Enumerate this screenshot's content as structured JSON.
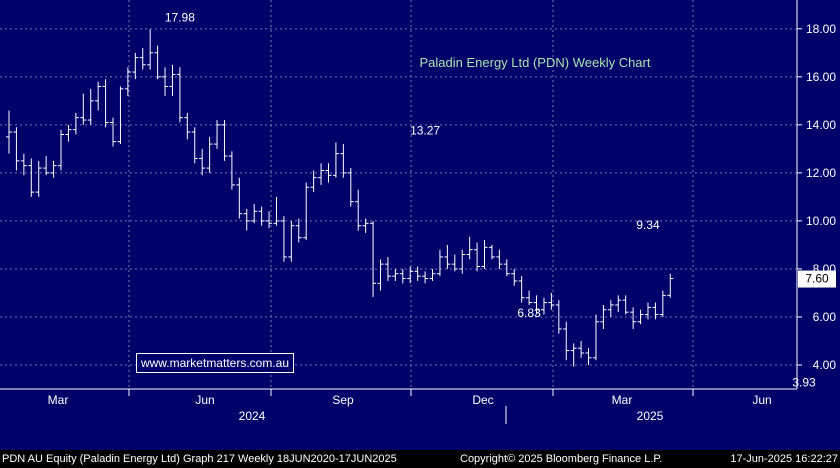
{
  "colors": {
    "plot_bg": "#00006b",
    "grid": "#7a7ab0",
    "bars": "#ffffff",
    "title": "#a8e6a8",
    "label": "#ffffff",
    "last_badge_bg": "#ffffff",
    "last_badge_text": "#000000"
  },
  "watermark": "www.marketmatters.com.au",
  "footer": {
    "left": "PDN AU Equity (Paladin Energy Ltd)  Graph 217  Weekly 18JUN2020-17JUN2025",
    "center": "Copyright© 2025 Bloomberg Finance L.P.",
    "right": "17-Jun-2025 16:22:27"
  },
  "chart_data": {
    "type": "ohlc",
    "title": "Paladin Energy Ltd (PDN) Weekly Chart",
    "interval": "weekly",
    "y_axis": {
      "position": "right",
      "range": [
        3.0,
        19.2
      ],
      "ticks": [
        "4.00",
        "6.00",
        "8.00",
        "10.00",
        "12.00",
        "14.00",
        "16.00",
        "18.00"
      ],
      "grid": true
    },
    "x_axis": {
      "month_labels": [
        "Mar",
        "Jun",
        "Sep",
        "Dec",
        "Mar",
        "Jun"
      ],
      "year_labels": [
        "2024",
        "2025"
      ]
    },
    "last_price": "7.60",
    "annotations": [
      {
        "label": "17.98",
        "week": 23,
        "value": 17.98,
        "position": "above"
      },
      {
        "label": "13.27",
        "week": 56,
        "value": 13.27,
        "position": "above"
      },
      {
        "label": "6.83",
        "week": 70,
        "value": 6.83,
        "position": "below"
      },
      {
        "label": "9.34",
        "week": 86,
        "value": 9.34,
        "position": "above"
      },
      {
        "label": "3.93",
        "week": 107,
        "value": 3.93,
        "position": "below"
      }
    ],
    "bars": [
      {
        "o": 13.5,
        "h": 14.6,
        "l": 12.8,
        "c": 13.7
      },
      {
        "o": 13.7,
        "h": 13.9,
        "l": 12.1,
        "c": 12.5
      },
      {
        "o": 12.5,
        "h": 12.8,
        "l": 11.9,
        "c": 12.3
      },
      {
        "o": 12.3,
        "h": 12.6,
        "l": 11.0,
        "c": 11.2
      },
      {
        "o": 11.2,
        "h": 12.5,
        "l": 11.0,
        "c": 12.2
      },
      {
        "o": 12.2,
        "h": 12.7,
        "l": 11.9,
        "c": 12.0
      },
      {
        "o": 12.0,
        "h": 12.5,
        "l": 11.8,
        "c": 12.3
      },
      {
        "o": 12.3,
        "h": 13.8,
        "l": 12.1,
        "c": 13.6
      },
      {
        "o": 13.6,
        "h": 14.0,
        "l": 13.3,
        "c": 13.8
      },
      {
        "o": 13.8,
        "h": 14.5,
        "l": 13.6,
        "c": 14.3
      },
      {
        "o": 14.3,
        "h": 15.3,
        "l": 14.0,
        "c": 14.2
      },
      {
        "o": 14.2,
        "h": 15.5,
        "l": 14.0,
        "c": 15.0
      },
      {
        "o": 15.0,
        "h": 15.8,
        "l": 14.6,
        "c": 15.6
      },
      {
        "o": 15.6,
        "h": 15.9,
        "l": 13.9,
        "c": 14.1
      },
      {
        "o": 14.1,
        "h": 14.3,
        "l": 13.1,
        "c": 13.3
      },
      {
        "o": 13.3,
        "h": 15.6,
        "l": 13.2,
        "c": 15.5
      },
      {
        "o": 15.5,
        "h": 16.4,
        "l": 15.2,
        "c": 16.2
      },
      {
        "o": 16.2,
        "h": 17.0,
        "l": 15.9,
        "c": 16.8
      },
      {
        "o": 16.8,
        "h": 17.2,
        "l": 16.3,
        "c": 16.5
      },
      {
        "o": 16.5,
        "h": 17.98,
        "l": 16.3,
        "c": 17.0
      },
      {
        "o": 17.0,
        "h": 17.3,
        "l": 15.9,
        "c": 16.0
      },
      {
        "o": 16.0,
        "h": 16.4,
        "l": 15.2,
        "c": 15.6
      },
      {
        "o": 15.6,
        "h": 16.5,
        "l": 15.2,
        "c": 16.1
      },
      {
        "o": 16.1,
        "h": 16.4,
        "l": 14.1,
        "c": 14.3
      },
      {
        "o": 14.3,
        "h": 14.5,
        "l": 13.4,
        "c": 13.7
      },
      {
        "o": 13.7,
        "h": 13.9,
        "l": 12.4,
        "c": 12.6
      },
      {
        "o": 12.6,
        "h": 13.0,
        "l": 11.9,
        "c": 12.2
      },
      {
        "o": 12.2,
        "h": 13.5,
        "l": 12.0,
        "c": 13.2
      },
      {
        "o": 13.2,
        "h": 14.2,
        "l": 13.0,
        "c": 14.0
      },
      {
        "o": 14.0,
        "h": 14.2,
        "l": 12.5,
        "c": 12.7
      },
      {
        "o": 12.7,
        "h": 12.9,
        "l": 11.3,
        "c": 11.5
      },
      {
        "o": 11.5,
        "h": 11.8,
        "l": 10.1,
        "c": 10.3
      },
      {
        "o": 10.3,
        "h": 10.5,
        "l": 9.6,
        "c": 10.0
      },
      {
        "o": 10.0,
        "h": 10.7,
        "l": 9.9,
        "c": 10.4
      },
      {
        "o": 10.4,
        "h": 10.6,
        "l": 9.8,
        "c": 10.0
      },
      {
        "o": 10.0,
        "h": 10.4,
        "l": 9.7,
        "c": 9.9
      },
      {
        "o": 9.9,
        "h": 11.0,
        "l": 9.8,
        "c": 10.0
      },
      {
        "o": 10.0,
        "h": 10.2,
        "l": 8.3,
        "c": 8.5
      },
      {
        "o": 8.5,
        "h": 10.0,
        "l": 8.3,
        "c": 9.8
      },
      {
        "o": 9.8,
        "h": 10.1,
        "l": 9.1,
        "c": 9.3
      },
      {
        "o": 9.3,
        "h": 11.6,
        "l": 9.2,
        "c": 11.4
      },
      {
        "o": 11.4,
        "h": 12.1,
        "l": 11.2,
        "c": 11.8
      },
      {
        "o": 11.8,
        "h": 12.4,
        "l": 11.5,
        "c": 12.1
      },
      {
        "o": 12.1,
        "h": 12.4,
        "l": 11.6,
        "c": 11.9
      },
      {
        "o": 11.9,
        "h": 13.27,
        "l": 11.8,
        "c": 12.8
      },
      {
        "o": 12.8,
        "h": 13.2,
        "l": 11.8,
        "c": 12.0
      },
      {
        "o": 12.0,
        "h": 12.2,
        "l": 10.6,
        "c": 10.8
      },
      {
        "o": 10.8,
        "h": 11.3,
        "l": 9.6,
        "c": 9.8
      },
      {
        "o": 9.8,
        "h": 10.1,
        "l": 9.5,
        "c": 9.9
      },
      {
        "o": 9.9,
        "h": 10.0,
        "l": 6.83,
        "c": 7.4
      },
      {
        "o": 7.4,
        "h": 8.4,
        "l": 7.1,
        "c": 8.2
      },
      {
        "o": 8.2,
        "h": 8.5,
        "l": 7.5,
        "c": 7.7
      },
      {
        "o": 7.7,
        "h": 8.0,
        "l": 7.5,
        "c": 7.8
      },
      {
        "o": 7.8,
        "h": 8.0,
        "l": 7.4,
        "c": 7.6
      },
      {
        "o": 7.6,
        "h": 8.1,
        "l": 7.4,
        "c": 7.9
      },
      {
        "o": 7.9,
        "h": 8.1,
        "l": 7.5,
        "c": 7.7
      },
      {
        "o": 7.7,
        "h": 7.9,
        "l": 7.4,
        "c": 7.6
      },
      {
        "o": 7.6,
        "h": 8.0,
        "l": 7.5,
        "c": 7.8
      },
      {
        "o": 7.8,
        "h": 8.8,
        "l": 7.7,
        "c": 8.5
      },
      {
        "o": 8.5,
        "h": 9.0,
        "l": 8.0,
        "c": 8.2
      },
      {
        "o": 8.2,
        "h": 8.6,
        "l": 7.9,
        "c": 8.0
      },
      {
        "o": 8.0,
        "h": 8.8,
        "l": 7.8,
        "c": 8.6
      },
      {
        "o": 8.6,
        "h": 9.34,
        "l": 8.4,
        "c": 8.8
      },
      {
        "o": 8.8,
        "h": 9.1,
        "l": 7.9,
        "c": 8.1
      },
      {
        "o": 8.1,
        "h": 9.2,
        "l": 8.0,
        "c": 8.9
      },
      {
        "o": 8.9,
        "h": 9.0,
        "l": 8.4,
        "c": 8.5
      },
      {
        "o": 8.5,
        "h": 8.8,
        "l": 8.0,
        "c": 8.2
      },
      {
        "o": 8.2,
        "h": 8.4,
        "l": 7.7,
        "c": 7.8
      },
      {
        "o": 7.8,
        "h": 8.0,
        "l": 7.3,
        "c": 7.5
      },
      {
        "o": 7.5,
        "h": 7.7,
        "l": 6.6,
        "c": 6.8
      },
      {
        "o": 6.8,
        "h": 7.1,
        "l": 6.5,
        "c": 6.6
      },
      {
        "o": 6.6,
        "h": 6.9,
        "l": 6.1,
        "c": 6.3
      },
      {
        "o": 6.3,
        "h": 6.8,
        "l": 6.1,
        "c": 6.6
      },
      {
        "o": 6.6,
        "h": 7.0,
        "l": 6.3,
        "c": 6.5
      },
      {
        "o": 6.5,
        "h": 6.7,
        "l": 5.3,
        "c": 5.5
      },
      {
        "o": 5.5,
        "h": 5.8,
        "l": 4.2,
        "c": 4.6
      },
      {
        "o": 4.6,
        "h": 4.9,
        "l": 3.93,
        "c": 4.7
      },
      {
        "o": 4.7,
        "h": 5.0,
        "l": 4.3,
        "c": 4.5
      },
      {
        "o": 4.5,
        "h": 4.7,
        "l": 4.0,
        "c": 4.3
      },
      {
        "o": 4.3,
        "h": 6.1,
        "l": 4.2,
        "c": 5.8
      },
      {
        "o": 5.8,
        "h": 6.5,
        "l": 5.5,
        "c": 6.3
      },
      {
        "o": 6.3,
        "h": 6.7,
        "l": 6.0,
        "c": 6.5
      },
      {
        "o": 6.5,
        "h": 6.9,
        "l": 6.2,
        "c": 6.7
      },
      {
        "o": 6.7,
        "h": 6.9,
        "l": 6.1,
        "c": 6.2
      },
      {
        "o": 6.2,
        "h": 6.4,
        "l": 5.5,
        "c": 5.8
      },
      {
        "o": 5.8,
        "h": 6.3,
        "l": 5.7,
        "c": 6.1
      },
      {
        "o": 6.1,
        "h": 6.6,
        "l": 5.9,
        "c": 6.4
      },
      {
        "o": 6.4,
        "h": 6.6,
        "l": 5.9,
        "c": 6.1
      },
      {
        "o": 6.1,
        "h": 7.1,
        "l": 6.0,
        "c": 6.9
      },
      {
        "o": 6.9,
        "h": 7.8,
        "l": 6.8,
        "c": 7.6
      }
    ]
  }
}
